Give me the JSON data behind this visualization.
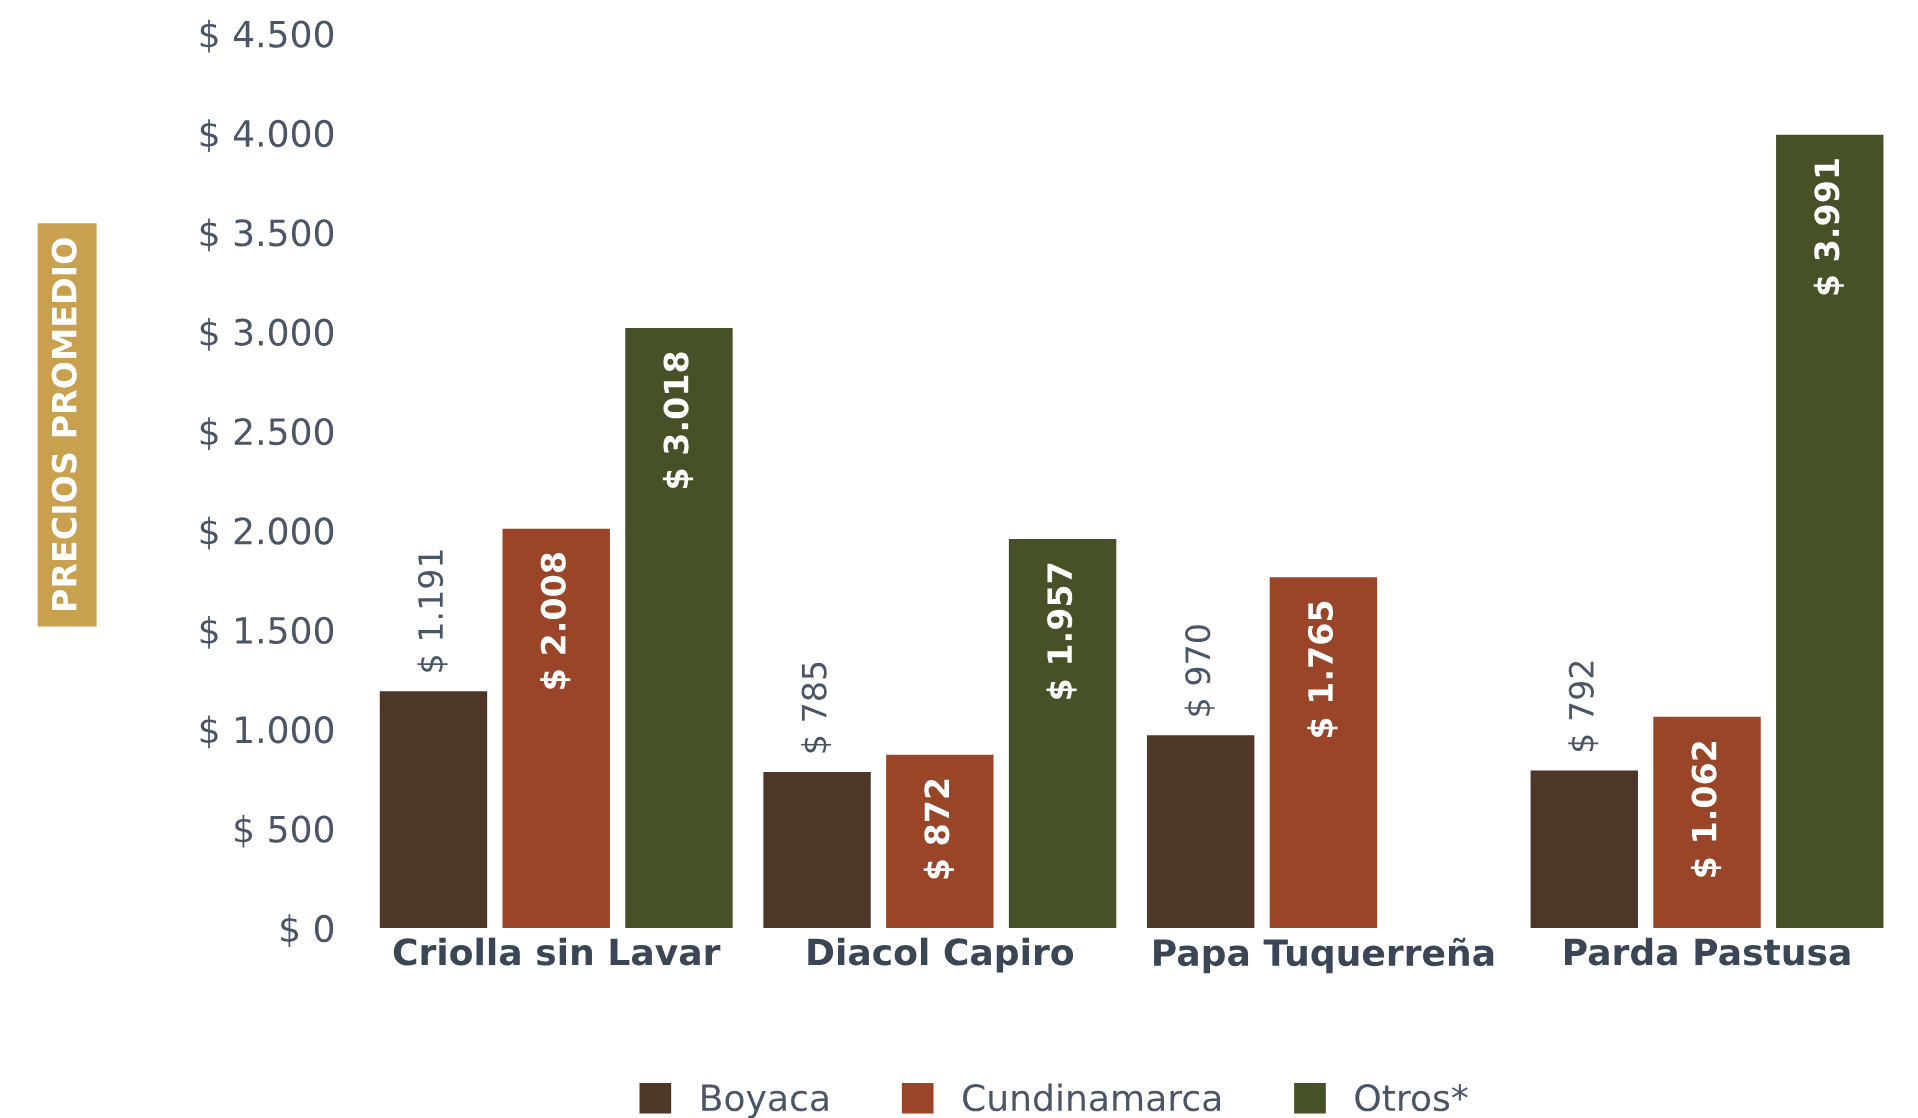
{
  "chart_data": {
    "type": "bar",
    "ylabel": "PRECIOS PROMEDIO",
    "categories": [
      "Criolla sin Lavar",
      "Diacol Capiro",
      "Papa Tuquerreña",
      "Parda Pastusa"
    ],
    "series": [
      {
        "name": "Boyaca",
        "color": "#4e3629",
        "values": [
          1191,
          785,
          970,
          792
        ],
        "value_labels": [
          "$ 1.191",
          "$ 785",
          "$ 970",
          "$ 792"
        ]
      },
      {
        "name": "Cundinamarca",
        "color": "#9a4527",
        "values": [
          2008,
          872,
          1765,
          1062
        ],
        "value_labels": [
          "$ 2.008",
          "$ 872",
          "$ 1.765",
          "$ 1.062"
        ]
      },
      {
        "name": "Otros*",
        "color": "#475128",
        "values": [
          3018,
          1957,
          null,
          3991
        ],
        "value_labels": [
          "$ 3.018",
          "$ 1.957",
          null,
          "$ 3.991"
        ]
      }
    ],
    "ylim": [
      0,
      4500
    ],
    "yticks": [
      {
        "value": 0,
        "label": "$ 0"
      },
      {
        "value": 500,
        "label": "$ 500"
      },
      {
        "value": 1000,
        "label": "$ 1.000"
      },
      {
        "value": 1500,
        "label": "$ 1.500"
      },
      {
        "value": 2000,
        "label": "$ 2.000"
      },
      {
        "value": 2500,
        "label": "$ 2.500"
      },
      {
        "value": 3000,
        "label": "$ 3.000"
      },
      {
        "value": 3500,
        "label": "$ 3.500"
      },
      {
        "value": 4000,
        "label": "$ 4.000"
      },
      {
        "value": 4500,
        "label": "$ 4.500"
      }
    ],
    "grid": false,
    "legend": "bottom"
  }
}
